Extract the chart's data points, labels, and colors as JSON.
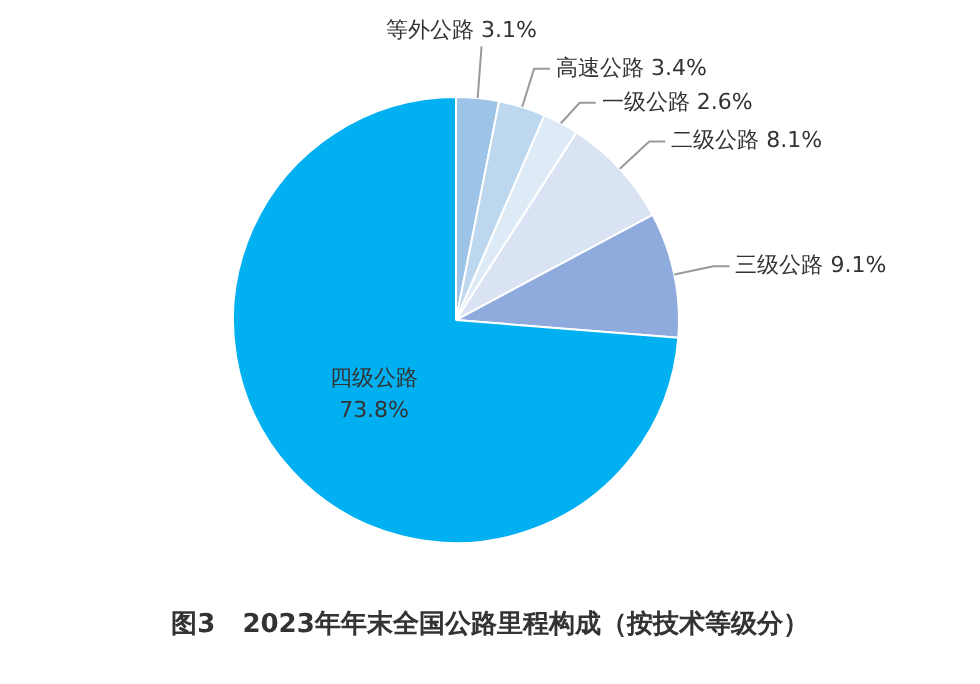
{
  "chart_data": {
    "type": "pie",
    "title": "图3   2023年年末全国公路里程构成（按技术等级分）",
    "categories": [
      "等外公路",
      "高速公路",
      "一级公路",
      "二级公路",
      "三级公路",
      "四级公路"
    ],
    "values": [
      3.1,
      3.4,
      2.6,
      8.1,
      9.1,
      73.8
    ],
    "value_labels": [
      "3.1%",
      "3.4%",
      "2.6%",
      "8.1%",
      "9.1%",
      "73.8%"
    ],
    "colors": [
      "#9dc3e6",
      "#bdd7ee",
      "#deebf7",
      "#dae3f3",
      "#8faadc",
      "#00b0f0"
    ],
    "legend": false
  }
}
